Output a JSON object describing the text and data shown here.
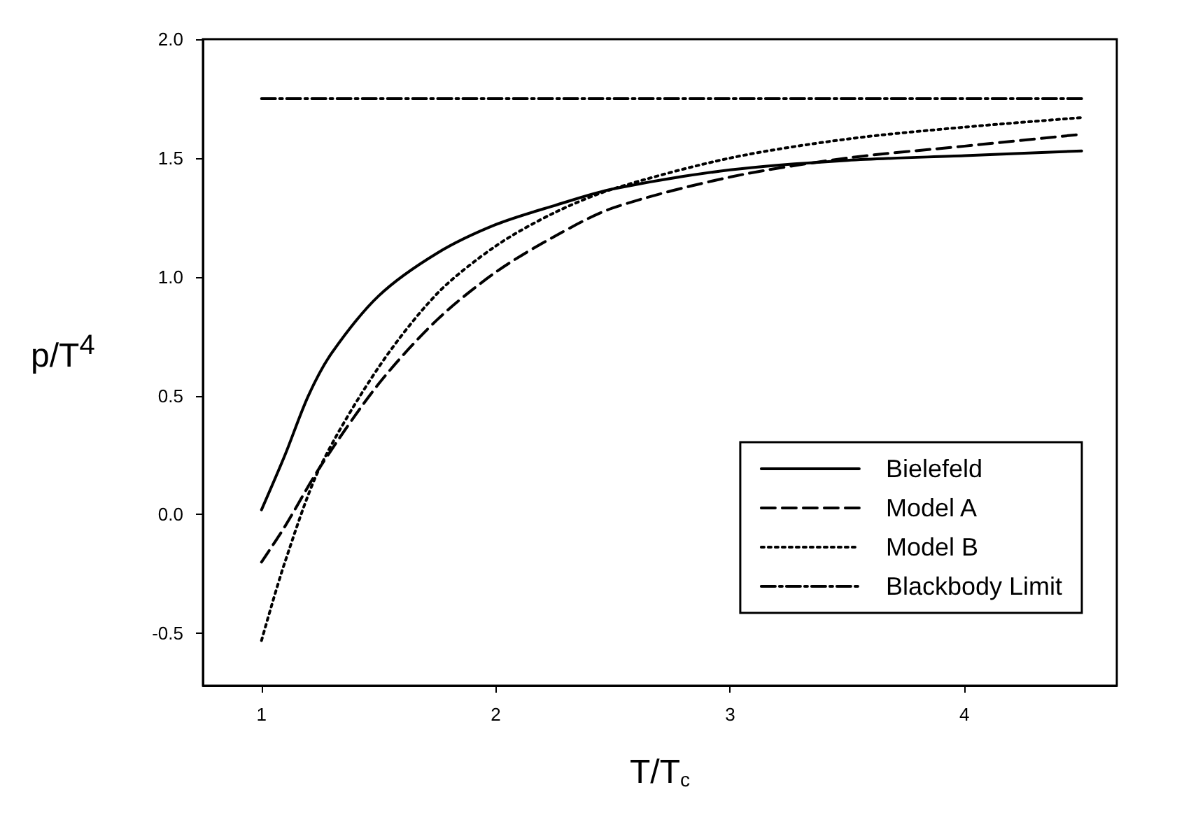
{
  "chart_data": {
    "type": "line",
    "xlabel": "T/T$_{c}$",
    "ylabel": "p/T$^{4}$",
    "xlim": [
      0.75,
      4.65
    ],
    "xticks": [
      1,
      2,
      3,
      4
    ],
    "ylim": [
      -0.72,
      2.0
    ],
    "yticks": [
      {
        "value": -0.5,
        "label": "-0.5"
      },
      {
        "value": 0,
        "label": "0.0"
      },
      {
        "value": 0.5,
        "label": "0.5"
      },
      {
        "value": 1,
        "label": "1.0"
      },
      {
        "value": 1.5,
        "label": "1.5"
      },
      {
        "value": 2,
        "label": "2.0"
      }
    ],
    "grid": false,
    "legend": "bottom right",
    "marker": "none",
    "series": [
      {
        "name": "Bielefeld",
        "color": "#000000",
        "line_style": "solid",
        "x": [
          1,
          1.1,
          1.2,
          1.3,
          1.5,
          1.75,
          2,
          2.25,
          2.5,
          3,
          3.5,
          4,
          4.5
        ],
        "values": [
          0.02,
          0.25,
          0.5,
          0.68,
          0.92,
          1.1,
          1.22,
          1.3,
          1.37,
          1.45,
          1.49,
          1.51,
          1.53
        ]
      },
      {
        "name": "Model A",
        "color": "#000000",
        "line_style": "dashed",
        "x": [
          1,
          1.1,
          1.25,
          1.5,
          1.75,
          2,
          2.25,
          2.5,
          3,
          3.5,
          4,
          4.5
        ],
        "values": [
          -0.2,
          -0.05,
          0.2,
          0.55,
          0.82,
          1.02,
          1.17,
          1.29,
          1.42,
          1.5,
          1.55,
          1.6
        ]
      },
      {
        "name": "Model B",
        "color": "#000000",
        "line_style": "dotted",
        "x": [
          1,
          1.1,
          1.25,
          1.5,
          1.75,
          2,
          2.25,
          2.5,
          3,
          3.5,
          4,
          4.5
        ],
        "values": [
          -0.53,
          -0.2,
          0.2,
          0.62,
          0.93,
          1.13,
          1.27,
          1.37,
          1.5,
          1.58,
          1.63,
          1.67
        ]
      },
      {
        "name": "Blackbody Limit",
        "color": "#000000",
        "line_style": "dashdot",
        "x": [
          1,
          4.5
        ],
        "values": [
          1.75,
          1.75
        ]
      }
    ]
  }
}
